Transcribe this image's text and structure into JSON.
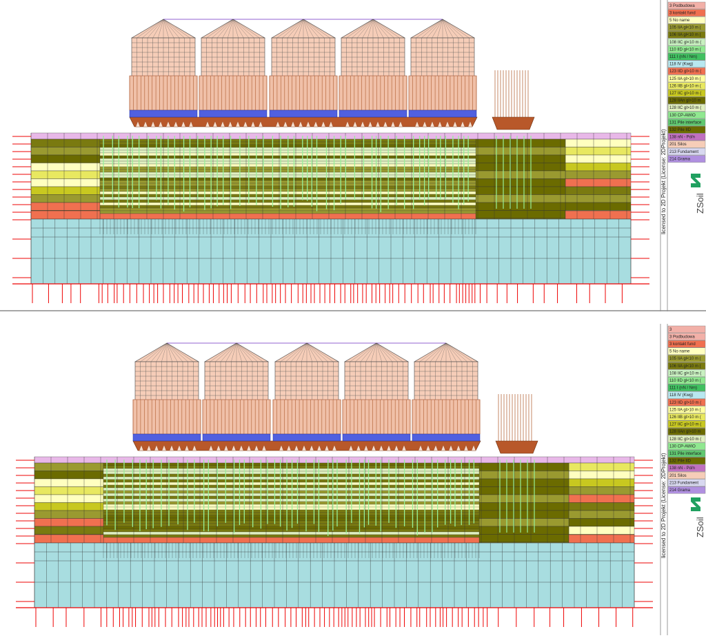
{
  "panels": [
    {
      "legend": [
        {
          "label": "3 Podbudowa",
          "color": "#f2b0a8"
        },
        {
          "label": "3 kontakt fund",
          "color": "#f07050"
        },
        {
          "label": "5 No name",
          "color": "#ffffc0"
        },
        {
          "label": "105 IIA gl<10 m (",
          "color": "#9a9a30"
        },
        {
          "label": "106 IIA gl<10 m (",
          "color": "#7a7a10"
        },
        {
          "label": "108 IIC gl<10 m (",
          "color": "#c8f0c0"
        },
        {
          "label": "110 IID gl<10 m (",
          "color": "#90e890"
        },
        {
          "label": "111 I (nN / Nm)",
          "color": "#40c060"
        },
        {
          "label": "118 IV (Kwg)",
          "color": "#b8e8f0"
        },
        {
          "label": "123 IID gl>10 m (",
          "color": "#f07050"
        },
        {
          "label": "125 IIA gl>10 m (",
          "color": "#ffffa0"
        },
        {
          "label": "126 IIB gl>10 m (",
          "color": "#e8e860"
        },
        {
          "label": "127 IIC gl>10 m (",
          "color": "#c8c820"
        },
        {
          "label": "128 IIAn gl>10 m",
          "color": "#6b6b00"
        },
        {
          "label": "128 IIC gl>10 m (",
          "color": "#e0f0c0"
        },
        {
          "label": "130 CP-AWIO",
          "color": "#90e890"
        },
        {
          "label": "131 Pile interface",
          "color": "#60c870"
        },
        {
          "label": "132 Pile IID",
          "color": "#6b6b00"
        },
        {
          "label": "138 nN - Pd/n",
          "color": "#c070c0"
        },
        {
          "label": "201 Silos",
          "color": "#f6cdb8"
        },
        {
          "label": "213 Fundament",
          "color": "#d8d8f0"
        },
        {
          "label": "214 Grama",
          "color": "#b090e0"
        }
      ],
      "license": "licensed to 2D Projekt (License: 2DProjekt)",
      "logo": "ZSoil"
    },
    {
      "legend": [
        {
          "label": "3",
          "color": "#f2b0a8"
        },
        {
          "label": "3 Podbudowa",
          "color": "#f2b0a8"
        },
        {
          "label": "3 kontakt fund",
          "color": "#f07050"
        },
        {
          "label": "5 No name",
          "color": "#ffffc0"
        },
        {
          "label": "105 IIA gl<10 m (",
          "color": "#9a9a30"
        },
        {
          "label": "106 IIA gl<10 m (",
          "color": "#7a7a10"
        },
        {
          "label": "108 IIC gl<10 m (",
          "color": "#c8f0c0"
        },
        {
          "label": "110 IID gl<10 m (",
          "color": "#90e890"
        },
        {
          "label": "111 I (nN / Nm)",
          "color": "#40c060"
        },
        {
          "label": "118 IV (Kwg)",
          "color": "#b8e8f0"
        },
        {
          "label": "123 IID gl>10 m (",
          "color": "#f07050"
        },
        {
          "label": "125 IIA gl>10 m (",
          "color": "#ffffa0"
        },
        {
          "label": "126 IIB gl>10 m (",
          "color": "#e8e860"
        },
        {
          "label": "127 IIC gl>10 m (",
          "color": "#c8c820"
        },
        {
          "label": "128 IIAn gl>10 m",
          "color": "#6b6b00"
        },
        {
          "label": "128 IIC gl>10 m (",
          "color": "#e0f0c0"
        },
        {
          "label": "130 CP-AWIO",
          "color": "#90e890"
        },
        {
          "label": "131 Pile interface",
          "color": "#60c870"
        },
        {
          "label": "132 Pile IID",
          "color": "#6b6b00"
        },
        {
          "label": "138 nN - Pd/n",
          "color": "#c070c0"
        },
        {
          "label": "201 Silos",
          "color": "#f6cdb8"
        },
        {
          "label": "213 Fundament",
          "color": "#d8d8f0"
        },
        {
          "label": "214 Grama",
          "color": "#b090e0"
        }
      ],
      "license": "licensed to 2D Projekt (License: 2DProjekt)",
      "logo": "ZSoil"
    }
  ]
}
